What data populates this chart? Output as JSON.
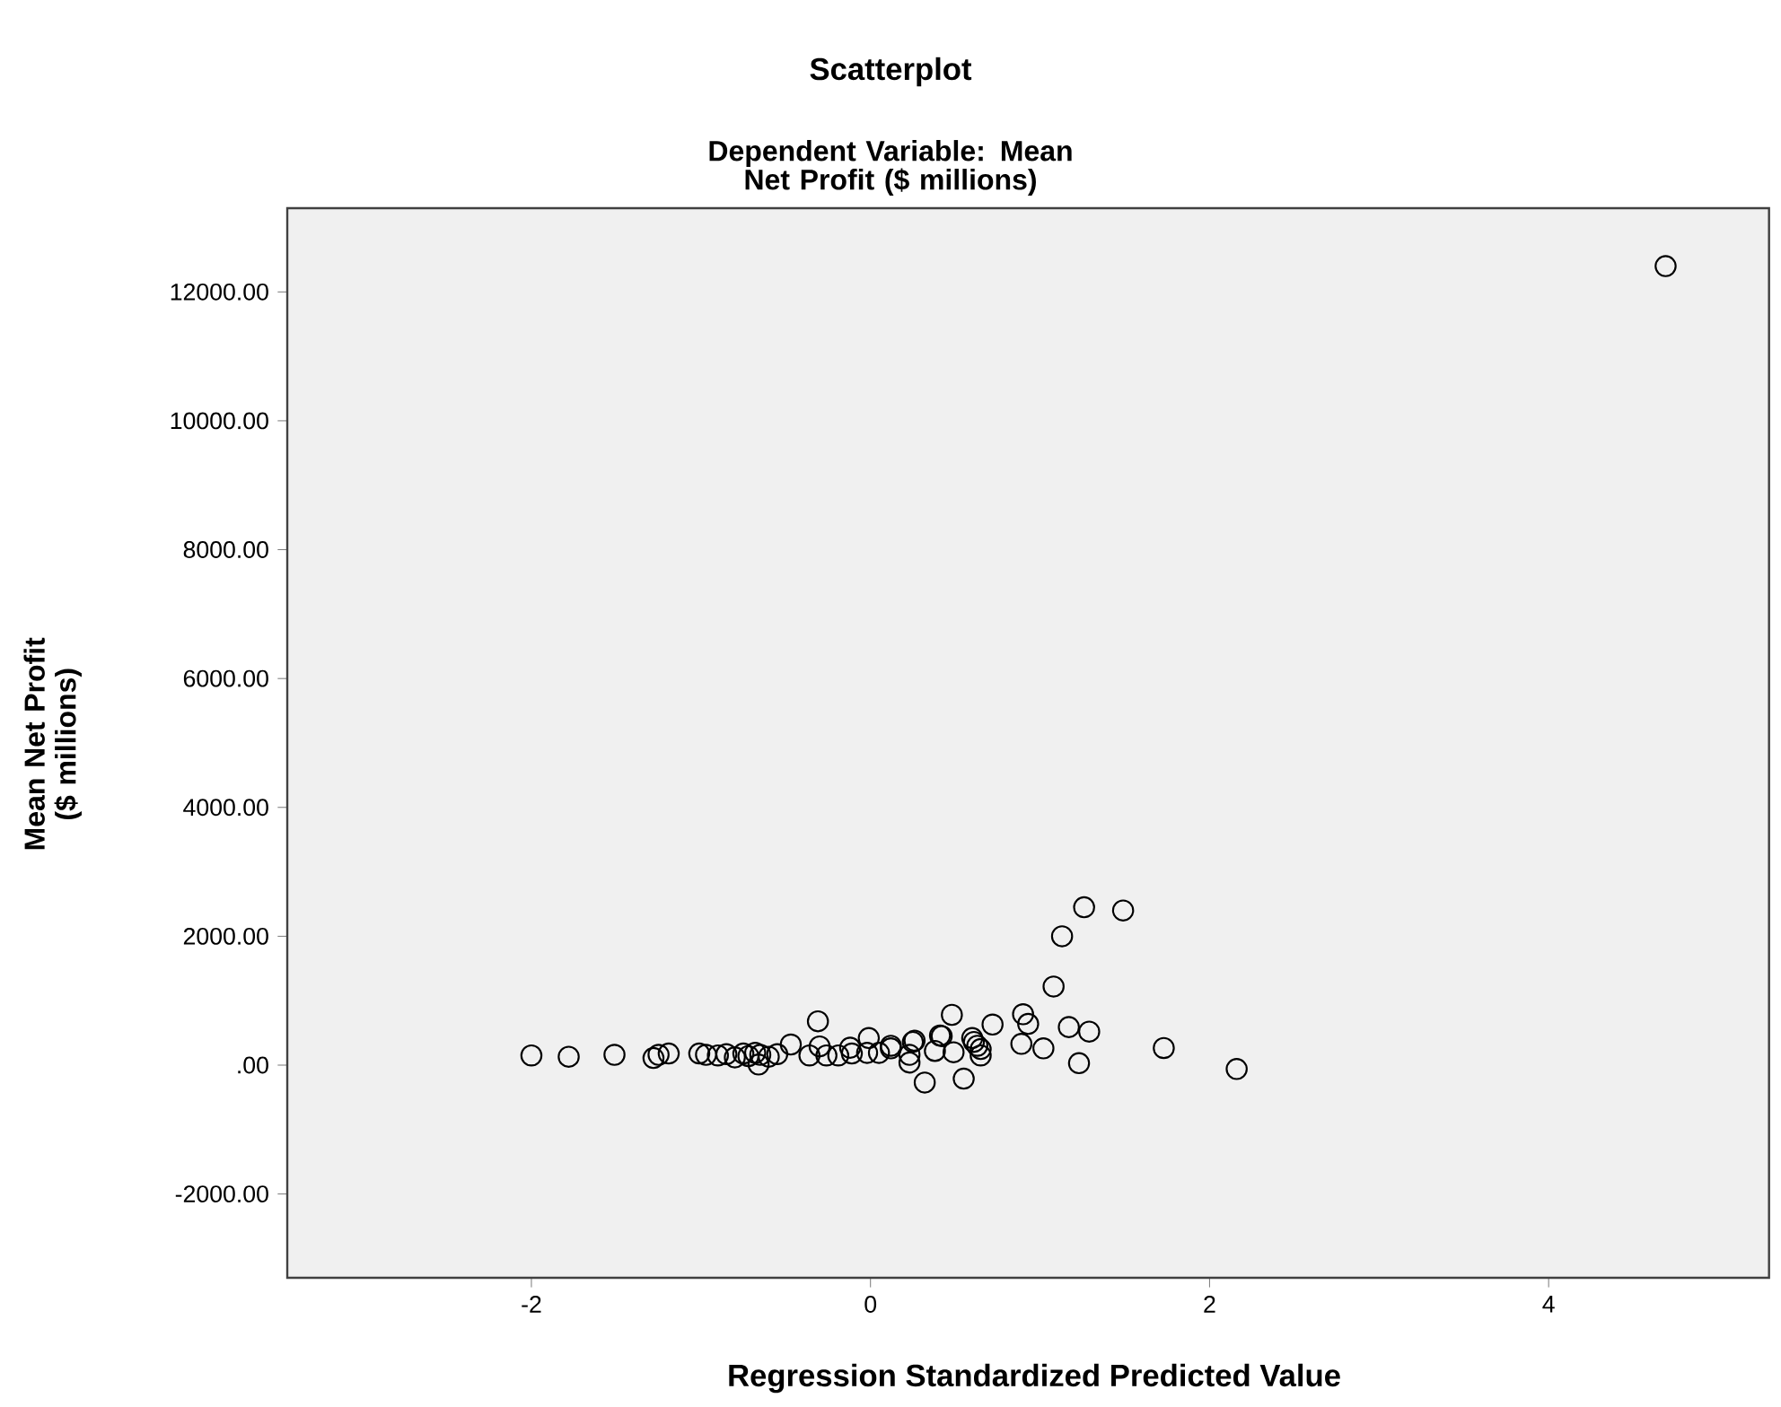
{
  "chart_data": {
    "type": "scatter",
    "title": "Scatterplot",
    "subtitle": "Dependent Variable: Mean Net Profit ($ millions)",
    "xlabel": "Regression Standardized Predicted Value",
    "ylabel": "Mean Net Profit ($ millions)",
    "xlim": [
      -3.44,
      5.3
    ],
    "ylim": [
      -3300,
      13300
    ],
    "xticks": [
      -2,
      0,
      2,
      4
    ],
    "yticks": [
      {
        "value": -2000,
        "label": "-2000.00"
      },
      {
        "value": 0,
        "label": ".00"
      },
      {
        "value": 2000,
        "label": "2000.00"
      },
      {
        "value": 4000,
        "label": "4000.00"
      },
      {
        "value": 6000,
        "label": "6000.00"
      },
      {
        "value": 8000,
        "label": "8000.00"
      },
      {
        "value": 10000,
        "label": "10000.00"
      },
      {
        "value": 12000,
        "label": "12000.00"
      }
    ],
    "grid": false,
    "marker": "circle",
    "series": [
      {
        "color": "#000000",
        "x": [
          -2.0,
          -1.78,
          -1.51,
          -1.28,
          -1.25,
          -1.19,
          -1.01,
          -0.97,
          -0.9,
          -0.85,
          -0.8,
          -0.75,
          -0.72,
          -0.68,
          -0.66,
          -0.65,
          -0.6,
          -0.55,
          -0.47,
          -0.36,
          -0.31,
          -0.3,
          -0.26,
          -0.19,
          -0.12,
          -0.11,
          -0.02,
          -0.01,
          0.05,
          0.12,
          0.12,
          0.23,
          0.23,
          0.25,
          0.26,
          0.32,
          0.38,
          0.41,
          0.42,
          0.48,
          0.49,
          0.55,
          0.6,
          0.61,
          0.63,
          0.65,
          0.65,
          0.72,
          0.89,
          0.9,
          0.93,
          1.02,
          1.08,
          1.13,
          1.17,
          1.23,
          1.26,
          1.29,
          1.49,
          1.73,
          2.16,
          4.69
        ],
        "values": [
          150,
          130,
          160,
          110,
          160,
          180,
          180,
          160,
          150,
          170,
          120,
          180,
          140,
          190,
          10,
          160,
          130,
          170,
          320,
          150,
          680,
          290,
          150,
          150,
          270,
          180,
          190,
          420,
          190,
          260,
          300,
          40,
          160,
          360,
          380,
          -270,
          220,
          460,
          450,
          780,
          200,
          -210,
          420,
          360,
          300,
          150,
          250,
          630,
          330,
          790,
          640,
          260,
          1220,
          2000,
          590,
          30,
          2450,
          520,
          2400,
          265,
          -60,
          12400
        ]
      }
    ]
  }
}
